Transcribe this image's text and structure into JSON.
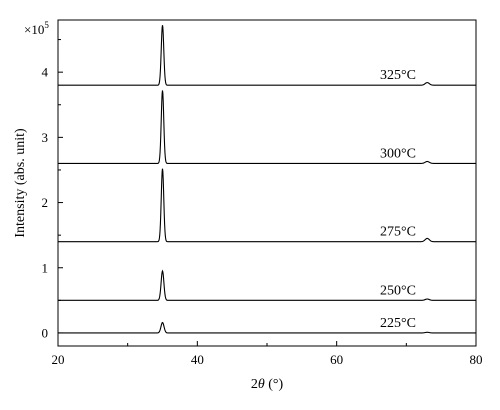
{
  "chart_data": {
    "type": "line",
    "xlabel_prefix": "2",
    "xlabel_symbol": "θ",
    "xlabel_unit": " (°)",
    "ylabel": "Intensity (abs. unit)",
    "y_multiplier_base": "×10",
    "y_multiplier_exp": "5",
    "xlim": [
      20,
      80
    ],
    "ylim": [
      -0.2,
      4.8
    ],
    "x_ticks": [
      20,
      40,
      60,
      80
    ],
    "y_ticks": [
      0,
      1,
      2,
      3,
      4
    ],
    "grid": false,
    "series": [
      {
        "name": "225°C",
        "baseline": 0.0,
        "peaks": [
          {
            "x": 35.0,
            "height": 0.16,
            "width": 0.22
          },
          {
            "x": 73.0,
            "height": 0.01,
            "width": 0.3
          }
        ]
      },
      {
        "name": "250°C",
        "baseline": 0.5,
        "peaks": [
          {
            "x": 35.0,
            "height": 0.45,
            "width": 0.2
          },
          {
            "x": 73.0,
            "height": 0.02,
            "width": 0.3
          }
        ]
      },
      {
        "name": "275°C",
        "baseline": 1.4,
        "peaks": [
          {
            "x": 35.0,
            "height": 1.12,
            "width": 0.18
          },
          {
            "x": 73.0,
            "height": 0.05,
            "width": 0.3
          }
        ]
      },
      {
        "name": "300°C",
        "baseline": 2.6,
        "peaks": [
          {
            "x": 35.0,
            "height": 1.12,
            "width": 0.18
          },
          {
            "x": 73.0,
            "height": 0.03,
            "width": 0.3
          }
        ]
      },
      {
        "name": "325°C",
        "baseline": 3.8,
        "peaks": [
          {
            "x": 35.0,
            "height": 0.92,
            "width": 0.18
          },
          {
            "x": 73.0,
            "height": 0.04,
            "width": 0.3
          }
        ]
      }
    ]
  }
}
